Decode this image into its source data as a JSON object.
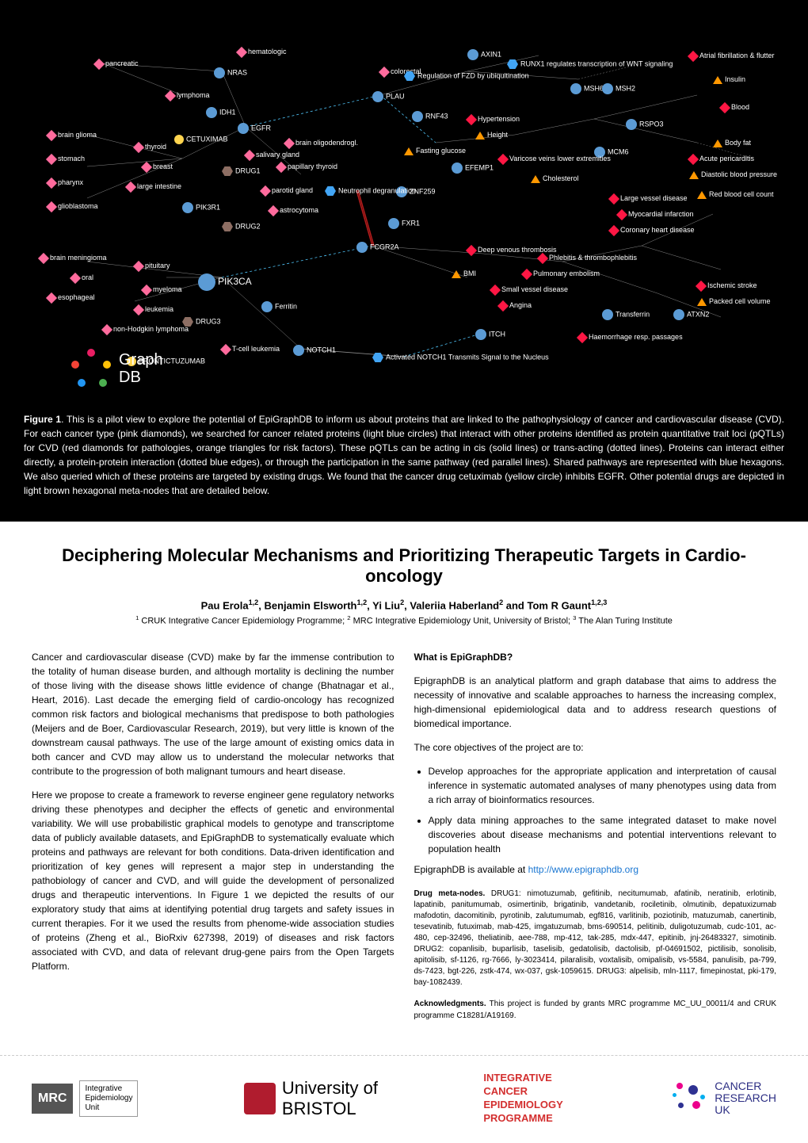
{
  "figure": {
    "graphdb_label": "Graph\nDB",
    "caption_label": "Figure 1",
    "caption_text": ". This is a pilot view to explore the potential of EpiGraphDB to inform us about proteins that are linked to the pathophysiology of cancer and cardiovascular disease (CVD). For each cancer type (pink diamonds), we searched for cancer related proteins (light blue circles) that interact with other proteins identified as protein quantitative trait loci (pQTLs) for CVD (red diamonds for pathologies, orange triangles for risk factors). These pQTLs can be acting in cis (solid lines) or trans-acting (dotted lines). Proteins can interact either directly, a protein-protein interaction (dotted blue edges), or through the participation in the same pathway (red parallel lines). Shared pathways are represented with blue hexagons. We also queried which of these proteins are targeted by existing drugs. We found that the cancer drug cetuximab (yellow circle) inhibits EGFR. Other potential drugs are depicted in light brown hexagonal meta-nodes that are detailed below.",
    "nodes": {
      "cancers": [
        "pancreatic",
        "lymphoma",
        "brain glioma",
        "stomach",
        "pharynx",
        "glioblastoma",
        "thyroid",
        "breast",
        "large intestine",
        "salivary gland",
        "brain oligodendrogl.",
        "papillary thyroid",
        "parotid gland",
        "astrocytoma",
        "colorectal",
        "hematologic",
        "brain meningioma",
        "oral",
        "esophageal",
        "pituitary",
        "myeloma",
        "leukemia",
        "non-Hodgkin lymphoma",
        "T-cell leukemia"
      ],
      "proteins": [
        "NRAS",
        "IDH1",
        "EGFR",
        "PIK3R1",
        "PIK3CA",
        "NOTCH1",
        "FCGR2A",
        "FXR1",
        "ZNF259",
        "EFEMP1",
        "PLAU",
        "AXIN1",
        "RNF43",
        "MSH6",
        "MSH2",
        "RSPO3",
        "MCM6",
        "ITCH",
        "ATXN2",
        "Ferritin",
        "Transferrin"
      ],
      "drugs_yellow": [
        "CETUXIMAB",
        "BRONTICTUZUMAB"
      ],
      "drugs_brown": [
        "DRUG1",
        "DRUG2",
        "DRUG3"
      ],
      "pathways": [
        "Regulation of FZD by ubiquitination",
        "RUNX1 regulates transcription of WNT signaling",
        "Neutrophil degranulation",
        "Activated NOTCH1 Transmits Signal to the Nucleus"
      ],
      "pathologies": [
        "Hypertension",
        "Varicose veins lower extremities",
        "Deep venous thrombosis",
        "Phlebitis & thrombophlebitis",
        "Pulmonary embolism",
        "Small vessel disease",
        "Angina",
        "Atrial fibrillation & flutter",
        "Acute pericarditis",
        "Large vessel disease",
        "Myocardial infarction",
        "Coronary heart disease",
        "Ischemic stroke",
        "Haemorrhage resp. passages",
        "Blood"
      ],
      "risk_factors": [
        "Height",
        "Fasting glucose",
        "Cholesterol",
        "BMI",
        "Insulin",
        "Body fat",
        "Diastolic blood pressure",
        "Red blood cell count",
        "Packed cell volume"
      ]
    }
  },
  "title": "Deciphering Molecular Mechanisms and Prioritizing Therapeutic Targets in Cardio-oncology",
  "authors_html": "Pau Erola<sup>1,2</sup>, Benjamin Elsworth<sup>1,2</sup>, Yi Liu<sup>2</sup>, Valeriia Haberland<sup>2</sup> and Tom R Gaunt<sup>1,2,3</sup>",
  "affiliations": "<sup>1</sup> CRUK Integrative Cancer Epidemiology Programme; <sup>2</sup> MRC Integrative Epidemiology Unit, University of Bristol; <sup>3</sup> The Alan Turing Institute",
  "left_col": {
    "p1": "Cancer and cardiovascular disease (CVD) make by far the immense contribution to the totality of human disease burden, and although mortality is declining the number of those living with the disease shows little evidence of change (Bhatnagar et al., Heart, 2016). Last decade the emerging field of cardio-oncology has recognized common risk factors and biological mechanisms that predispose to both pathologies (Meijers and de Boer, Cardiovascular Research, 2019), but very little is known of the downstream causal pathways. The use of the large amount of existing omics data in both cancer and CVD may allow us to understand the molecular networks that contribute to the progression of both malignant tumours and heart disease.",
    "p2": "Here we propose to create a framework to reverse engineer gene regulatory networks driving these phenotypes and decipher the effects of genetic and environmental variability. We will use probabilistic graphical models to genotype and transcriptome data of publicly available datasets, and EpiGraphDB to systematically evaluate which proteins and pathways are relevant for both conditions. Data-driven identification and prioritization of key genes will represent a major step in understanding the pathobiology of cancer and CVD, and will guide the development of personalized drugs and therapeutic interventions. In Figure 1 we depicted the results of our exploratory study that aims at identifying potential drug targets and safety issues in current therapies. For it we used the results from phenome-wide association studies of proteins (Zheng et al., BioRxiv 627398, 2019) of diseases and risk factors associated with CVD, and data of relevant drug-gene pairs from the Open Targets Platform."
  },
  "right_col": {
    "box_title": "What is EpiGraphDB?",
    "box_p1": "EpigraphDB is an analytical platform and graph database that aims to address the necessity of innovative and scalable approaches to harness the increasing complex, high-dimensional epidemiological data and to address research questions of biomedical importance.",
    "box_p2": "The core objectives of the project are to:",
    "box_li1": "Develop approaches for the appropriate application and interpretation of causal inference in systematic automated analyses of many phenotypes using data from a rich array of bioinformatics resources.",
    "box_li2": "Apply data mining approaches to the same integrated dataset to make novel discoveries about disease mechanisms and potential interventions relevant to population health",
    "box_p3_prefix": "EpigraphDB is available at ",
    "box_link": "http://www.epigraphdb.org",
    "meta_title": "Drug meta-nodes.",
    "meta_text": " DRUG1: nimotuzumab, gefitinib, necitumumab, afatinib, neratinib, erlotinib, lapatinib, panitumumab, osimertinib, brigatinib, vandetanib, rociletinib, olmutinib, depatuxizumab mafodotin, dacomitinib, pyrotinib, zalutumumab, egf816, varlitinib, poziotinib, matuzumab, canertinib, tesevatinib, futuximab, mab-425, imgatuzumab, bms-690514, pelitinib, duligotuzumab, cudc-101, ac-480, cep-32496, theliatinib, aee-788, mp-412, tak-285, mdx-447, epitinib, jnj-26483327, simotinib. DRUG2: copanlisib, buparlisib, taselisib, gedatolisib, dactolisib, pf-04691502, pictilisib, sonolisib, apitolisib, sf-1126, rg-7666, ly-3023414, pilaralisib, voxtalisib, omipalisib, vs-5584, panulisib, pa-799, ds-7423, bgt-226, zstk-474, wx-037, gsk-1059615. DRUG3: alpelisib, mln-1117, fimepinostat, pki-179, bay-1082439.",
    "ack_title": "Acknowledgments.",
    "ack_text": " This project is funded by grants MRC programme MC_UU_00011/4 and CRUK programme C18281/A19169."
  },
  "footer": {
    "mrc": "MRC",
    "ieu": "Integrative\nEpidemiology\nUnit",
    "uob": "University of\nBRISTOL",
    "icep": "INTEGRATIVE\nCANCER\nEPIDEMIOLOGY\nPROGRAMME",
    "cruk": "CANCER\nRESEARCH\nUK"
  },
  "colors": {
    "cancer": "#ff6b9d",
    "pathology": "#ff1744",
    "protein": "#5b9bd5",
    "drug_yellow": "#ffd54f",
    "risk": "#ff9800",
    "pathway": "#42a5f5",
    "drug_brown": "#8d6e63",
    "edge_gray": "#888",
    "edge_blue": "#4fc3f7",
    "edge_red": "#b71c1c"
  }
}
